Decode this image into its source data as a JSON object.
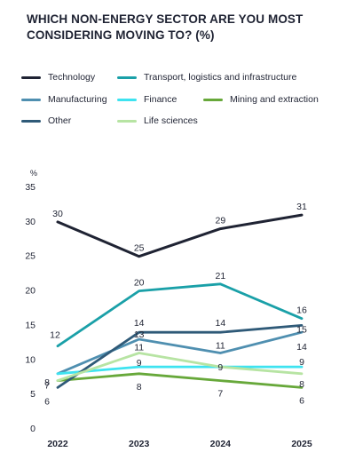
{
  "title": "WHICH NON-ENERGY SECTOR ARE YOU MOST CONSIDERING MOVING TO? (%)",
  "colors": {
    "Technology": "#1f2333",
    "Transport, logistics and infrastructure": "#1aa0a8",
    "Manufacturing": "#4f8fb0",
    "Finance": "#3ee3f0",
    "Mining and extraction": "#67a83a",
    "Other": "#2f5a78",
    "Life sciences": "#b7e4a3",
    "axis_text": "#1f2333"
  },
  "chart_data": {
    "type": "line",
    "title": "WHICH NON-ENERGY SECTOR ARE YOU MOST CONSIDERING MOVING TO? (%)",
    "x": [
      "2022",
      "2023",
      "2024",
      "2025"
    ],
    "ylabel": "%",
    "ylim": [
      0,
      35
    ],
    "yticks": [
      0,
      5,
      10,
      15,
      20,
      25,
      30,
      35
    ],
    "legend_position": "top",
    "grid": false,
    "series": [
      {
        "name": "Technology",
        "values": [
          30,
          25,
          29,
          31
        ],
        "labels": [
          "30",
          "25",
          "29",
          "31"
        ]
      },
      {
        "name": "Transport, logistics and infrastructure",
        "values": [
          12,
          20,
          21,
          16
        ],
        "labels": [
          "12",
          "20",
          "21",
          "16"
        ]
      },
      {
        "name": "Manufacturing",
        "values": [
          8,
          13,
          11,
          14
        ],
        "labels": [
          "8",
          "13",
          "11",
          "14"
        ]
      },
      {
        "name": "Finance",
        "values": [
          8,
          9,
          9,
          9
        ],
        "labels": [
          "",
          "9",
          "",
          "9"
        ]
      },
      {
        "name": "Mining and extraction",
        "values": [
          7,
          8,
          7,
          6
        ],
        "labels": [
          "7",
          "8",
          "7",
          "6"
        ]
      },
      {
        "name": "Other",
        "values": [
          6,
          14,
          14,
          15
        ],
        "labels": [
          "6",
          "14",
          "14",
          "15"
        ]
      },
      {
        "name": "Life sciences",
        "values": [
          7,
          11,
          9,
          8
        ],
        "labels": [
          "",
          "11",
          "9",
          "8"
        ]
      }
    ]
  }
}
